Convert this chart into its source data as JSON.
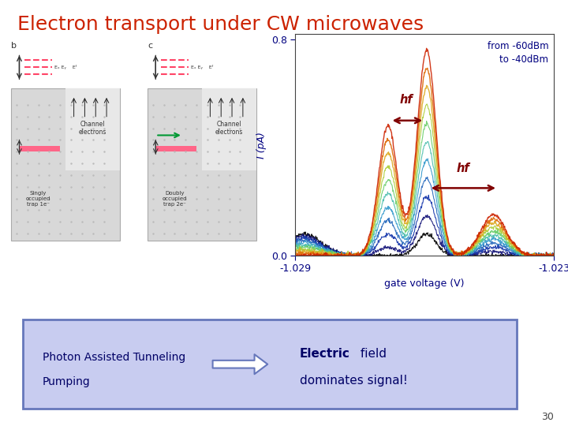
{
  "title": "Electron transport under CW microwaves",
  "title_color": "#cc2200",
  "title_fontsize": 18,
  "bg_color": "#ffffff",
  "plot_xlim": [
    -1.029,
    -1.023
  ],
  "plot_ylim": [
    0.0,
    0.82
  ],
  "plot_xlabel": "gate voltage (V)",
  "plot_ylabel": "I (pA)",
  "plot_yticks": [
    0.0,
    0.8
  ],
  "plot_xticks": [
    -1.029,
    -1.023
  ],
  "annotation_text": "from -60dBm\nto -40dBm",
  "annotation_color": "#000080",
  "hf_color": "#800000",
  "bottom_box_bg": "#c8ccf0",
  "bottom_box_border": "#6677bb",
  "bottom_left_text": "Photon Assisted Tunneling\nPumping",
  "bottom_right_text_bold": "Electric",
  "bottom_right_text_normal": " field",
  "bottom_text_color": "#000066",
  "page_number": "30",
  "num_curves": 11,
  "colors_list": [
    "#000000",
    "#111177",
    "#1133aa",
    "#2266bb",
    "#3399cc",
    "#44bbaa",
    "#66cc66",
    "#aacc33",
    "#ddaa22",
    "#dd6600",
    "#cc2200"
  ]
}
